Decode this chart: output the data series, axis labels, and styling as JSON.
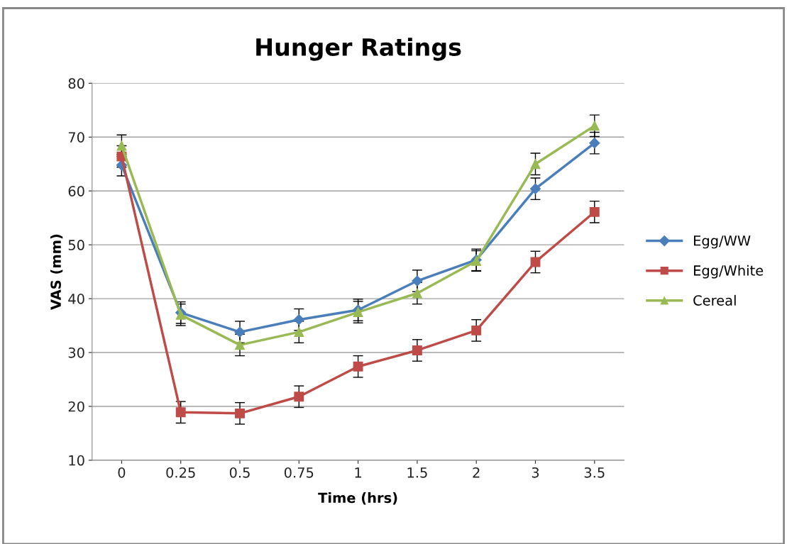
{
  "chart_data": {
    "type": "line",
    "title": "Hunger Ratings",
    "xlabel": "Time (hrs)",
    "ylabel": "VAS (mm)",
    "categories": [
      "0",
      "0.25",
      "0.5",
      "0.75",
      "1",
      "1.5",
      "2",
      "3",
      "3.5"
    ],
    "series": [
      {
        "name": "Egg/WW",
        "color": "#4a7ebb",
        "marker": "diamond",
        "values": [
          64.8,
          37.4,
          33.8,
          36.1,
          37.9,
          43.3,
          47.2,
          60.4,
          68.9
        ],
        "errors": [
          2,
          2,
          2,
          2,
          2,
          2,
          2,
          2,
          2
        ]
      },
      {
        "name": "Egg/White",
        "color": "#be4b48",
        "marker": "square",
        "values": [
          66.4,
          18.9,
          18.7,
          21.8,
          27.4,
          30.4,
          34.1,
          46.8,
          56.1
        ],
        "errors": [
          2,
          2,
          2,
          2,
          2,
          2,
          2,
          2,
          2
        ]
      },
      {
        "name": "Cereal",
        "color": "#98b954",
        "marker": "triangle",
        "values": [
          68.4,
          37.0,
          31.4,
          33.8,
          37.5,
          41.0,
          47.0,
          65.0,
          72.1
        ],
        "errors": [
          2,
          2,
          2,
          2,
          2,
          2,
          1.9,
          2,
          2
        ]
      }
    ],
    "ylim": [
      10,
      80
    ],
    "yticks": [
      10,
      20,
      30,
      40,
      50,
      60,
      70,
      80
    ],
    "grid": "y",
    "legend": "right",
    "line_style": "solid"
  }
}
